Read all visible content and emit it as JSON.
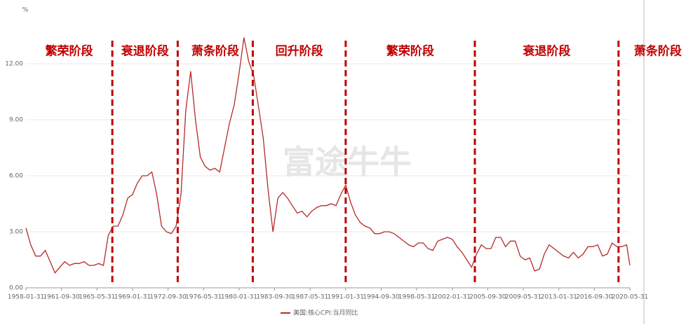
{
  "chart_data": {
    "type": "line",
    "y_unit": "%",
    "watermark": "富途牛牛",
    "x": [
      "1958-01-31",
      "1958-07-31",
      "1959-01-31",
      "1959-07-31",
      "1960-01-31",
      "1960-07-31",
      "1961-01-31",
      "1961-07-31",
      "1962-01-31",
      "1962-07-31",
      "1963-01-31",
      "1963-07-31",
      "1964-01-31",
      "1964-07-31",
      "1965-01-31",
      "1965-07-31",
      "1966-01-31",
      "1966-07-31",
      "1967-01-31",
      "1967-07-31",
      "1968-01-31",
      "1968-07-31",
      "1969-01-31",
      "1969-07-31",
      "1970-01-31",
      "1970-07-31",
      "1971-01-31",
      "1971-07-31",
      "1972-01-31",
      "1972-07-31",
      "1973-01-31",
      "1973-07-31",
      "1974-01-31",
      "1974-07-31",
      "1975-01-31",
      "1975-07-31",
      "1976-01-31",
      "1976-07-31",
      "1977-01-31",
      "1977-07-31",
      "1978-01-31",
      "1978-07-31",
      "1979-01-31",
      "1979-07-31",
      "1980-01-31",
      "1980-07-31",
      "1981-01-31",
      "1981-07-31",
      "1982-01-31",
      "1982-07-31",
      "1983-01-31",
      "1983-07-31",
      "1984-01-31",
      "1984-07-31",
      "1985-01-31",
      "1985-07-31",
      "1986-01-31",
      "1986-07-31",
      "1987-01-31",
      "1987-07-31",
      "1988-01-31",
      "1988-07-31",
      "1989-01-31",
      "1989-07-31",
      "1990-01-31",
      "1990-07-31",
      "1991-01-31",
      "1991-07-31",
      "1992-01-31",
      "1992-07-31",
      "1993-01-31",
      "1993-07-31",
      "1994-01-31",
      "1994-07-31",
      "1995-01-31",
      "1995-07-31",
      "1996-01-31",
      "1996-07-31",
      "1997-01-31",
      "1997-07-31",
      "1998-01-31",
      "1998-07-31",
      "1999-01-31",
      "1999-07-31",
      "2000-01-31",
      "2000-07-31",
      "2001-01-31",
      "2001-07-31",
      "2002-01-31",
      "2002-07-31",
      "2003-01-31",
      "2003-07-31",
      "2004-01-31",
      "2004-07-31",
      "2005-01-31",
      "2005-07-31",
      "2006-01-31",
      "2006-07-31",
      "2007-01-31",
      "2007-07-31",
      "2008-01-31",
      "2008-07-31",
      "2009-01-31",
      "2009-07-31",
      "2010-01-31",
      "2010-07-31",
      "2011-01-31",
      "2011-07-31",
      "2012-01-31",
      "2012-07-31",
      "2013-01-31",
      "2013-07-31",
      "2014-01-31",
      "2014-07-31",
      "2015-01-31",
      "2015-07-31",
      "2016-01-31",
      "2016-07-31",
      "2017-01-31",
      "2017-07-31",
      "2018-01-31",
      "2018-07-31",
      "2019-01-31",
      "2019-07-31",
      "2020-01-31",
      "2020-05-31"
    ],
    "series": [
      {
        "name": "美国:核心CPI:当月同比",
        "color": "#b52a2a",
        "values": [
          3.2,
          2.3,
          1.7,
          1.7,
          2.0,
          1.4,
          0.8,
          1.1,
          1.4,
          1.2,
          1.3,
          1.3,
          1.4,
          1.2,
          1.2,
          1.3,
          1.2,
          2.8,
          3.3,
          3.3,
          3.9,
          4.8,
          5.0,
          5.6,
          6.0,
          6.0,
          6.2,
          5.0,
          3.3,
          3.0,
          2.9,
          3.3,
          5.0,
          9.5,
          11.6,
          9.0,
          7.0,
          6.5,
          6.3,
          6.4,
          6.2,
          7.5,
          8.8,
          9.8,
          11.5,
          13.4,
          12.1,
          11.4,
          9.7,
          8.0,
          5.2,
          3.0,
          4.8,
          5.1,
          4.8,
          4.4,
          4.0,
          4.1,
          3.8,
          4.1,
          4.3,
          4.4,
          4.4,
          4.5,
          4.4,
          5.0,
          5.5,
          4.6,
          3.9,
          3.5,
          3.3,
          3.2,
          2.9,
          2.9,
          3.0,
          3.0,
          2.9,
          2.7,
          2.5,
          2.3,
          2.2,
          2.4,
          2.4,
          2.1,
          2.0,
          2.5,
          2.6,
          2.7,
          2.6,
          2.2,
          1.9,
          1.5,
          1.1,
          1.8,
          2.3,
          2.1,
          2.1,
          2.7,
          2.7,
          2.2,
          2.5,
          2.5,
          1.7,
          1.5,
          1.6,
          0.9,
          1.0,
          1.8,
          2.3,
          2.1,
          1.9,
          1.7,
          1.6,
          1.9,
          1.6,
          1.8,
          2.2,
          2.2,
          2.3,
          1.7,
          1.8,
          2.4,
          2.2,
          2.2,
          2.3,
          1.2
        ]
      }
    ],
    "xlim": [
      "1958-01-31",
      "2020-05-31"
    ],
    "xticks": [
      "1958-01-31",
      "1961-09-30",
      "1965-05-31",
      "1969-01-31",
      "1972-09-30",
      "1976-05-31",
      "1980-01-31",
      "1983-09-30",
      "1987-05-31",
      "1991-01-31",
      "1994-09-30",
      "1998-05-31",
      "2002-01-31",
      "2005-09-30",
      "2009-05-31",
      "2013-01-31",
      "2016-09-30",
      "2020-05-31"
    ],
    "ylim": [
      0,
      14.4
    ],
    "yticks": [
      {
        "value": 0,
        "label": "0.00"
      },
      {
        "value": 3,
        "label": "3.00"
      },
      {
        "value": 6,
        "label": "6.00"
      },
      {
        "value": 9,
        "label": "9.00"
      },
      {
        "value": 12,
        "label": "12.00"
      }
    ],
    "grid": true,
    "dividers": [
      "1966-12-31",
      "1973-09-30",
      "1981-06-30",
      "1991-01-31",
      "2004-05-31",
      "2019-03-31"
    ],
    "divider_color": "#c00000",
    "phases": [
      "繁荣阶段",
      "衰退阶段",
      "萧条阶段",
      "回升阶段",
      "繁荣阶段",
      "衰退阶段",
      "萧条阶段"
    ]
  }
}
